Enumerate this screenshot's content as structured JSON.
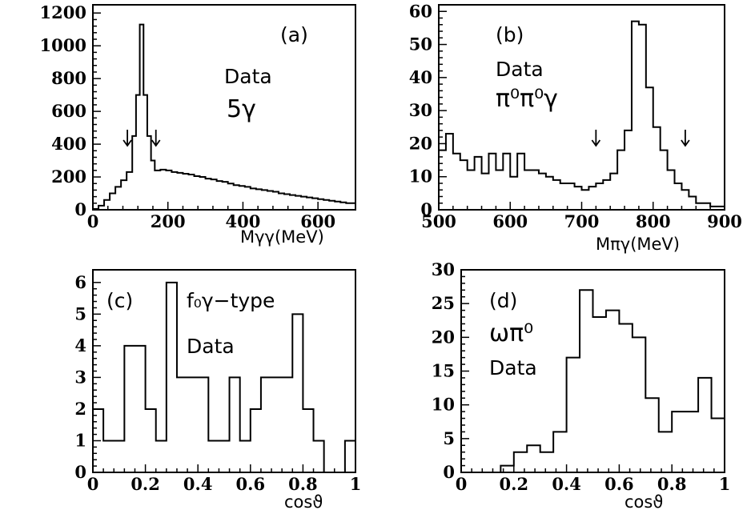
{
  "chart_data": [
    {
      "id": "a",
      "type": "histogram",
      "panel_label": "(a)",
      "annotations": [
        "Data",
        "5γ"
      ],
      "xlabel": "Mγγ(MeV)",
      "xlim": [
        0,
        700
      ],
      "ylim": [
        0,
        1250
      ],
      "xticks": [
        0,
        200,
        400,
        600
      ],
      "yticks": [
        0,
        200,
        400,
        600,
        800,
        1000,
        1200
      ],
      "arrows_x": [
        92,
        168
      ],
      "bin_edges": [
        0,
        15,
        30,
        45,
        60,
        75,
        90,
        105,
        115,
        125,
        135,
        145,
        155,
        165,
        180,
        195,
        210,
        225,
        240,
        255,
        270,
        285,
        300,
        315,
        330,
        345,
        360,
        375,
        390,
        405,
        420,
        435,
        450,
        465,
        480,
        495,
        510,
        525,
        540,
        555,
        570,
        585,
        600,
        615,
        630,
        645,
        660,
        675,
        690,
        700
      ],
      "values": [
        5,
        25,
        60,
        100,
        140,
        180,
        230,
        450,
        700,
        1130,
        700,
        450,
        300,
        240,
        245,
        240,
        230,
        225,
        220,
        215,
        205,
        200,
        190,
        185,
        175,
        170,
        160,
        150,
        145,
        140,
        130,
        125,
        120,
        115,
        110,
        100,
        95,
        90,
        85,
        80,
        75,
        70,
        65,
        60,
        55,
        50,
        45,
        40,
        40
      ]
    },
    {
      "id": "b",
      "type": "histogram",
      "panel_label": "(b)",
      "annotations": [
        "Data",
        "π⁰π⁰γ"
      ],
      "xlabel": "Mπγ(MeV)",
      "xlim": [
        500,
        900
      ],
      "ylim": [
        0,
        62
      ],
      "xticks": [
        500,
        600,
        700,
        800,
        900
      ],
      "yticks": [
        0,
        10,
        20,
        30,
        40,
        50,
        60
      ],
      "arrows_x": [
        720,
        845
      ],
      "bin_edges": [
        500,
        510,
        520,
        530,
        540,
        550,
        560,
        570,
        580,
        590,
        600,
        610,
        620,
        630,
        640,
        650,
        660,
        670,
        680,
        690,
        700,
        710,
        720,
        730,
        740,
        750,
        760,
        770,
        780,
        790,
        800,
        810,
        820,
        830,
        840,
        850,
        860,
        870,
        880,
        890,
        900
      ],
      "values": [
        18,
        23,
        17,
        15,
        12,
        16,
        11,
        17,
        12,
        17,
        10,
        17,
        12,
        12,
        11,
        10,
        9,
        8,
        8,
        7,
        6,
        7,
        8,
        9,
        11,
        18,
        24,
        57,
        56,
        37,
        25,
        18,
        12,
        8,
        6,
        4,
        2,
        2,
        1,
        1
      ]
    },
    {
      "id": "c",
      "type": "histogram",
      "panel_label": "(c)",
      "annotations": [
        "f₀γ−type",
        "Data"
      ],
      "xlabel": "cosϑ",
      "xlim": [
        0,
        1
      ],
      "ylim": [
        0,
        6.4
      ],
      "xticks": [
        0,
        0.2,
        0.4,
        0.6,
        0.8,
        1
      ],
      "yticks": [
        0,
        1,
        2,
        3,
        4,
        5,
        6
      ],
      "bin_edges": [
        0,
        0.04,
        0.08,
        0.12,
        0.16,
        0.2,
        0.24,
        0.28,
        0.32,
        0.36,
        0.4,
        0.44,
        0.48,
        0.52,
        0.56,
        0.6,
        0.64,
        0.68,
        0.72,
        0.76,
        0.8,
        0.84,
        0.88,
        0.92,
        0.96,
        1.0
      ],
      "values": [
        2,
        1,
        1,
        4,
        4,
        2,
        1,
        6,
        3,
        3,
        3,
        1,
        1,
        3,
        1,
        2,
        3,
        3,
        3,
        5,
        2,
        1,
        0,
        0,
        1
      ]
    },
    {
      "id": "d",
      "type": "histogram",
      "panel_label": "(d)",
      "annotations": [
        "ωπ⁰",
        "Data"
      ],
      "xlabel": "cosϑ",
      "xlim": [
        0,
        1
      ],
      "ylim": [
        0,
        30
      ],
      "xticks": [
        0,
        0.2,
        0.4,
        0.6,
        0.8,
        1
      ],
      "yticks": [
        0,
        5,
        10,
        15,
        20,
        25,
        30
      ],
      "bin_edges": [
        0,
        0.05,
        0.1,
        0.15,
        0.2,
        0.25,
        0.3,
        0.35,
        0.4,
        0.45,
        0.5,
        0.55,
        0.6,
        0.65,
        0.7,
        0.75,
        0.8,
        0.85,
        0.9,
        0.95,
        1.0
      ],
      "values": [
        0,
        0,
        0,
        1,
        3,
        4,
        3,
        6,
        17,
        27,
        23,
        24,
        22,
        20,
        11,
        6,
        9,
        9,
        14,
        8
      ]
    }
  ]
}
